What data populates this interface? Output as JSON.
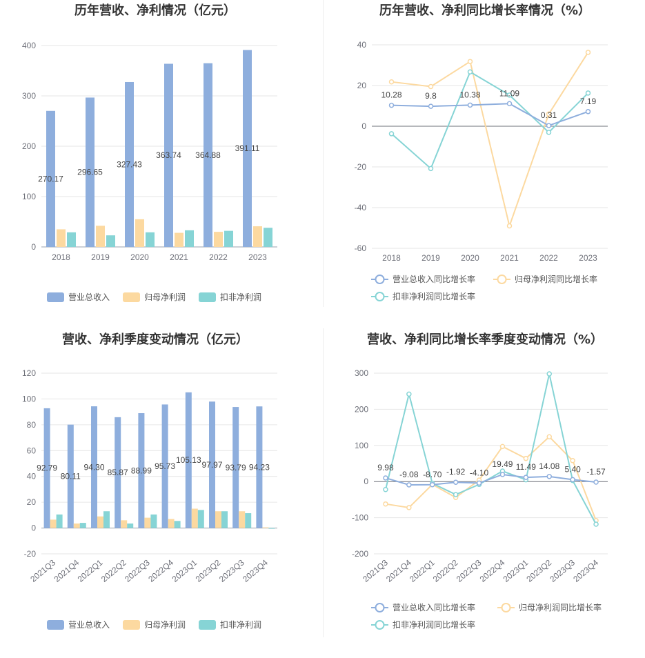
{
  "charts": {
    "annual_bar": {
      "title": "历年营收、净利情况（亿元）",
      "chart_data": {
        "type": "bar",
        "categories": [
          "2018",
          "2019",
          "2020",
          "2021",
          "2022",
          "2023"
        ],
        "ylim": [
          0,
          400
        ],
        "yticks": [
          0,
          100,
          200,
          300,
          400
        ],
        "grid": true,
        "legend_position": "bottom",
        "series": [
          {
            "name": "营业总收入",
            "color": "#8eaedd",
            "values": [
              270.17,
              296.65,
              327.43,
              363.74,
              364.88,
              391.11
            ],
            "labels": [
              "270.17",
              "296.65",
              "327.43",
              "363.74",
              "364.88",
              "391.11"
            ]
          },
          {
            "name": "归母净利润",
            "color": "#fcd9a0",
            "values": [
              35,
              42,
              55,
              28,
              30,
              41
            ]
          },
          {
            "name": "扣非净利润",
            "color": "#86d4d5",
            "values": [
              29,
              23,
              29,
              33,
              32,
              38
            ]
          }
        ]
      }
    },
    "annual_line": {
      "title": "历年营收、净利同比增长率情况（%）",
      "chart_data": {
        "type": "line",
        "categories": [
          "2018",
          "2019",
          "2020",
          "2021",
          "2022",
          "2023"
        ],
        "ylim": [
          -60,
          40
        ],
        "yticks": [
          -60,
          -40,
          -20,
          0,
          20,
          40
        ],
        "grid": true,
        "legend_position": "bottom",
        "series": [
          {
            "name": "营业总收入同比增长率",
            "color": "#8eaedd",
            "values": [
              10.28,
              9.8,
              10.38,
              11.09,
              0.31,
              7.19
            ],
            "labels": [
              "10.28",
              "9.8",
              "10.38",
              "11.09",
              "0.31",
              "7.19"
            ]
          },
          {
            "name": "归母净利润同比增长率",
            "color": "#fcd9a0",
            "values": [
              21.8,
              19.5,
              31.8,
              -49,
              6,
              36.3
            ]
          },
          {
            "name": "扣非净利润同比增长率",
            "color": "#86d4d5",
            "values": [
              -3.7,
              -20.8,
              26.7,
              15.3,
              -3,
              16.3
            ]
          }
        ]
      }
    },
    "quarter_bar": {
      "title": "营收、净利季度变动情况（亿元）",
      "chart_data": {
        "type": "bar",
        "categories": [
          "2021Q3",
          "2021Q4",
          "2022Q1",
          "2022Q2",
          "2022Q3",
          "2022Q4",
          "2023Q1",
          "2023Q2",
          "2023Q3",
          "2023Q4"
        ],
        "ylim": [
          -20,
          120
        ],
        "yticks": [
          -20,
          0,
          20,
          40,
          60,
          80,
          100,
          120
        ],
        "grid": true,
        "legend_position": "bottom",
        "series": [
          {
            "name": "营业总收入",
            "color": "#8eaedd",
            "values": [
              92.79,
              80.11,
              94.3,
              85.87,
              88.99,
              95.73,
              105.13,
              97.97,
              93.79,
              94.23
            ],
            "labels": [
              "92.79",
              "80.11",
              "94.30",
              "85.87",
              "88.99",
              "95.73",
              "105.13",
              "97.97",
              "93.79",
              "94.23"
            ]
          },
          {
            "name": "归母净利润",
            "color": "#fcd9a0",
            "values": [
              6.5,
              3.5,
              9,
              6,
              8,
              7,
              15,
              13,
              13,
              0.5
            ]
          },
          {
            "name": "扣非净利润",
            "color": "#86d4d5",
            "values": [
              10.5,
              4,
              13,
              3.5,
              10.5,
              5.5,
              14,
              13,
              11.5,
              -0.5
            ]
          }
        ]
      }
    },
    "quarter_line": {
      "title": "营收、净利同比增长率季度变动情况（%）",
      "chart_data": {
        "type": "line",
        "categories": [
          "2021Q3",
          "2021Q4",
          "2022Q1",
          "2022Q2",
          "2022Q3",
          "2022Q4",
          "2023Q1",
          "2023Q2",
          "2023Q3",
          "2023Q4"
        ],
        "ylim": [
          -200,
          300
        ],
        "yticks": [
          -200,
          -100,
          0,
          100,
          200,
          300
        ],
        "grid": true,
        "legend_position": "bottom",
        "series": [
          {
            "name": "营业总收入同比增长率",
            "color": "#8eaedd",
            "values": [
              9.98,
              -9.08,
              -8.7,
              -1.92,
              -4.1,
              19.49,
              11.49,
              14.08,
              5.4,
              -1.57
            ],
            "labels": [
              "9.98",
              "-9.08",
              "-8.70",
              "-1.92",
              "-4.10",
              "19.49",
              "11.49",
              "14.08",
              "5.40",
              "-1.57"
            ]
          },
          {
            "name": "归母净利润同比增长率",
            "color": "#fcd9a0",
            "values": [
              -62,
              -72,
              -8,
              -44,
              4,
              97,
              64,
              124,
              58,
              -108
            ]
          },
          {
            "name": "扣非净利润同比增长率",
            "color": "#86d4d5",
            "values": [
              -22,
              242,
              -5,
              -36,
              -8,
              29,
              5,
              298,
              3,
              -118
            ]
          }
        ]
      }
    }
  }
}
